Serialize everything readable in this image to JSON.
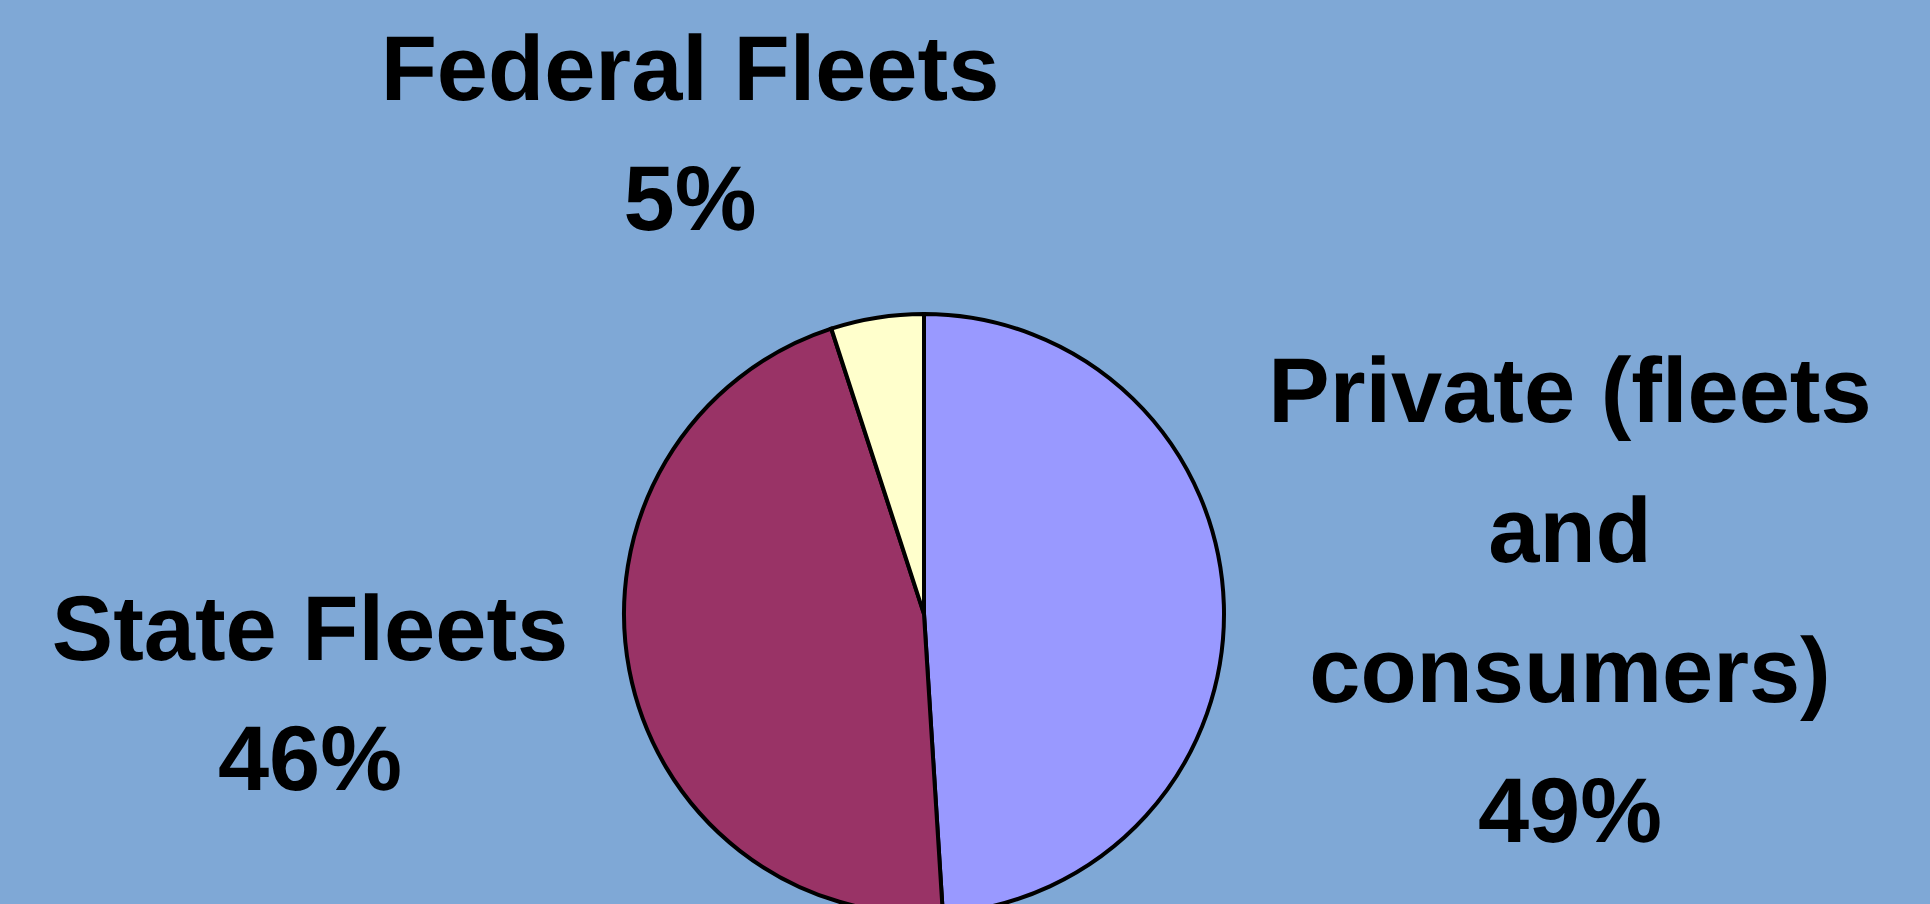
{
  "chart_data": {
    "type": "pie",
    "categories": [
      "Private (fleets\nand\nconsumers)",
      "State Fleets",
      "Federal Fleets"
    ],
    "values": [
      49,
      46,
      5
    ],
    "value_labels": [
      "49%",
      "46%",
      "5%"
    ],
    "colors": [
      "#9999ff",
      "#993366",
      "#ffffcc"
    ]
  }
}
